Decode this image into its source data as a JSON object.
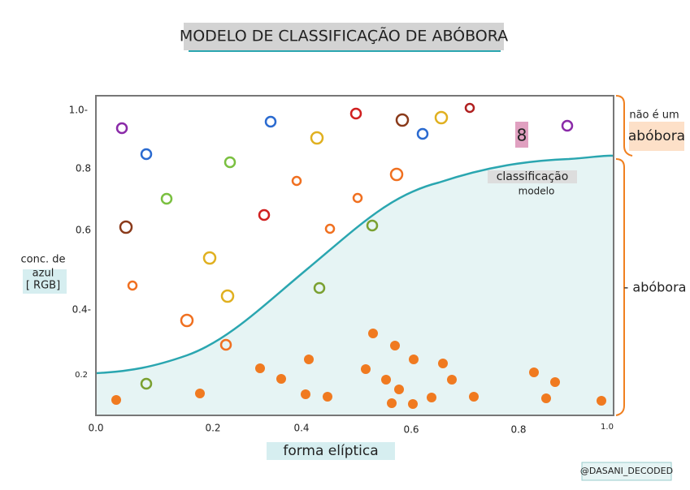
{
  "title": "MODELO DE CLASSIFICAÇÃO DE ABÓBORA",
  "x_axis": {
    "label": "forma elíptica",
    "ticks": [
      "0.0",
      "0.2",
      "0.4",
      "0.6",
      "0.8",
      "1.0"
    ]
  },
  "y_axis": {
    "label": [
      "conc. de",
      "azul",
      "[ RGB]"
    ],
    "ticks": [
      "1.0-",
      "0.8",
      "0.6",
      "0.4-",
      "0.2"
    ]
  },
  "curve_label": [
    "classificação",
    "modelo"
  ],
  "bracket_top": [
    "não é um",
    "abóbora"
  ],
  "bracket_bottom": "- abóbora",
  "marker": "8",
  "credit": "@DASANI_DECODED"
}
